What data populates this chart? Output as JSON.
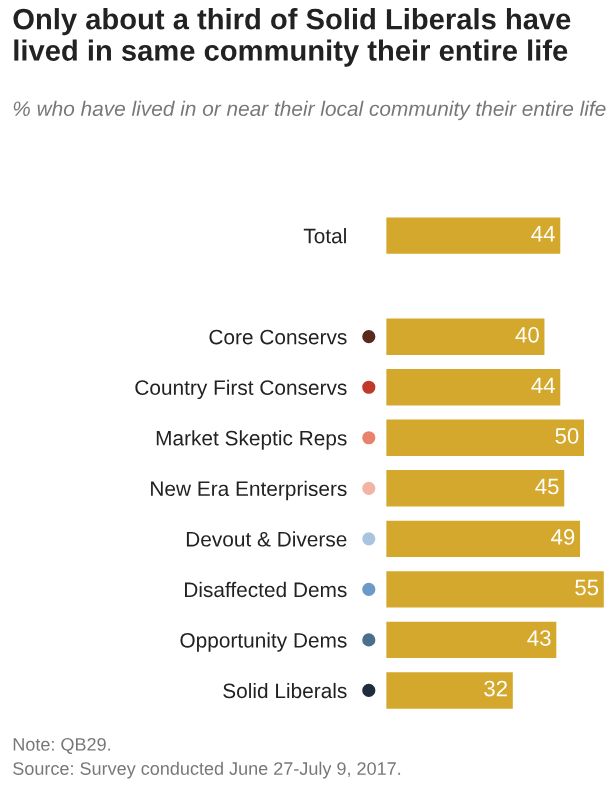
{
  "chart_data": {
    "type": "bar",
    "orientation": "horizontal",
    "title": "Only about a third of Solid Liberals have lived in same community their entire life",
    "subtitle": "% who have lived in or near their local community their entire life",
    "categories": [
      "Total",
      null,
      "Core Conservs",
      "Country First Conservs",
      "Market Skeptic Reps",
      "New Era Enterprisers",
      "Devout & Diverse",
      "Disaffected Dems",
      "Opportunity Dems",
      "Solid Liberals"
    ],
    "values": [
      44,
      null,
      40,
      44,
      50,
      45,
      49,
      55,
      43,
      32
    ],
    "color": "#d4a82c",
    "data_labels": true,
    "tick_labels": "y",
    "grid": false,
    "legend": false,
    "annotations": [
      "Note: QB29.",
      "Source: Survey conducted June 27-July 9, 2017."
    ]
  }
}
